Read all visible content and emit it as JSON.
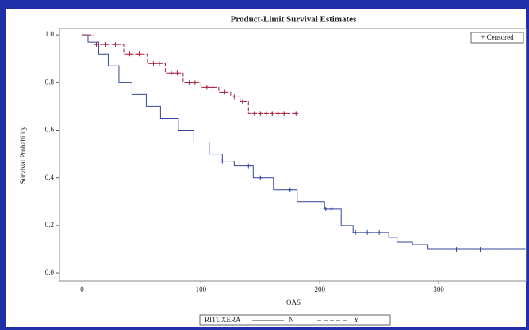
{
  "chart_data": {
    "type": "step",
    "title": "Product-Limit Survival Estimates",
    "x_label": "OAS",
    "y_label": "Survival Probability",
    "censored_label": "+ Censored",
    "legend_title": "RITUXERA",
    "xlim": [
      -19,
      374
    ],
    "ylim": [
      -0.033,
      1.027
    ],
    "xticks": [
      0,
      100,
      200,
      300
    ],
    "yticks": [
      {
        "value": 0,
        "label": "0.0"
      },
      0.2,
      0.4,
      0.6,
      0.8,
      {
        "value": 1,
        "label": "1.0"
      }
    ],
    "series": [
      {
        "name": "N",
        "color": "#34449c",
        "dash": false,
        "x": [
          0,
          5,
          14,
          22,
          31,
          42,
          54,
          66,
          81,
          94,
          107,
          118,
          128,
          144,
          161,
          181,
          204,
          218,
          228,
          258,
          265,
          278,
          291,
          371
        ],
        "values": [
          1,
          0.97,
          0.92,
          0.87,
          0.8,
          0.75,
          0.7,
          0.65,
          0.6,
          0.55,
          0.5,
          0.47,
          0.45,
          0.4,
          0.35,
          0.3,
          0.27,
          0.2,
          0.17,
          0.15,
          0.13,
          0.12,
          0.1,
          0.1
        ],
        "censored_x": [
          68,
          118,
          140,
          150,
          175,
          205,
          210,
          230,
          240,
          250,
          315,
          335,
          355,
          371
        ],
        "censored_y": [
          0.65,
          0.47,
          0.45,
          0.4,
          0.35,
          0.27,
          0.27,
          0.17,
          0.17,
          0.17,
          0.1,
          0.1,
          0.1,
          0.1
        ]
      },
      {
        "name": "Y",
        "color": "#a3203c",
        "dash": true,
        "x": [
          0,
          10,
          35,
          55,
          70,
          85,
          100,
          115,
          125,
          133,
          140,
          180
        ],
        "values": [
          1,
          0.96,
          0.92,
          0.88,
          0.84,
          0.8,
          0.78,
          0.76,
          0.74,
          0.72,
          0.67,
          0.67
        ],
        "censored_x": [
          12,
          20,
          28,
          40,
          48,
          60,
          65,
          75,
          80,
          90,
          95,
          105,
          110,
          120,
          128,
          135,
          145,
          150,
          155,
          160,
          165,
          170,
          180
        ],
        "censored_y": [
          0.96,
          0.96,
          0.96,
          0.92,
          0.92,
          0.88,
          0.88,
          0.84,
          0.84,
          0.8,
          0.8,
          0.78,
          0.78,
          0.76,
          0.74,
          0.72,
          0.67,
          0.67,
          0.67,
          0.67,
          0.67,
          0.67,
          0.67
        ]
      }
    ]
  }
}
